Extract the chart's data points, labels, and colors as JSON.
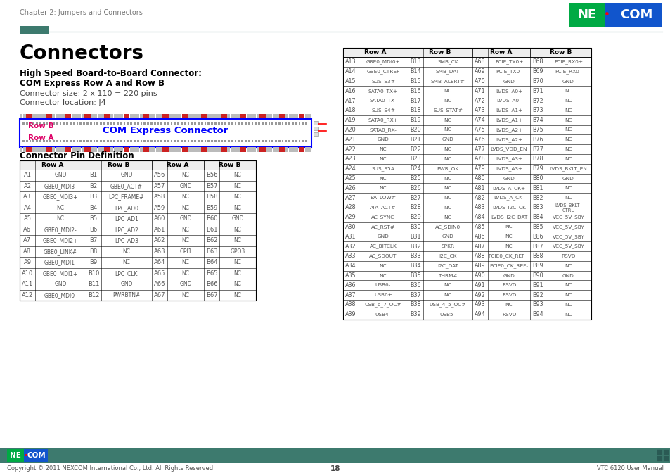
{
  "title": "Connectors",
  "subtitle1": "High Speed Board-to-Board Connector:",
  "subtitle2": "COM Express Row A and Row B",
  "connector_size": "Connector size: 2 x 110 = 220 pins",
  "connector_loc": "Connector location: J4",
  "chapter_header": "Chapter 2: Jumpers and Connectors",
  "connector_def_title": "Connector Pin Definition",
  "page_number": "18",
  "copyright": "Copyright © 2011 NEXCOM International Co., Ltd. All Rights Reserved.",
  "footer_right": "VTC 6120 User Manual",
  "header_line_color": "#3d7a6e",
  "header_block_color": "#3d7a6e",
  "footer_color": "#3d7a6e",
  "table1_data": [
    [
      "A1",
      "GND",
      "B1",
      "GND",
      "A56",
      "NC",
      "B56",
      "NC"
    ],
    [
      "A2",
      "GBE0_MDI3-",
      "B2",
      "GBE0_ACT#",
      "A57",
      "GND",
      "B57",
      "NC"
    ],
    [
      "A3",
      "GBE0_MDI3+",
      "B3",
      "LPC_FRAME#",
      "A58",
      "NC",
      "B58",
      "NC"
    ],
    [
      "A4",
      "NC",
      "B4",
      "LPC_AD0",
      "A59",
      "NC",
      "B59",
      "NC"
    ],
    [
      "A5",
      "NC",
      "B5",
      "LPC_AD1",
      "A60",
      "GND",
      "B60",
      "GND"
    ],
    [
      "A6",
      "GBE0_MDI2-",
      "B6",
      "LPC_AD2",
      "A61",
      "NC",
      "B61",
      "NC"
    ],
    [
      "A7",
      "GBE0_MDI2+",
      "B7",
      "LPC_AD3",
      "A62",
      "NC",
      "B62",
      "NC"
    ],
    [
      "A8",
      "GBE0_LINK#",
      "B8",
      "NC",
      "A63",
      "GPI1",
      "B63",
      "GPO3"
    ],
    [
      "A9",
      "GBE0_MDI1-",
      "B9",
      "NC",
      "A64",
      "NC",
      "B64",
      "NC"
    ],
    [
      "A10",
      "GBE0_MDI1+",
      "B10",
      "LPC_CLK",
      "A65",
      "NC",
      "B65",
      "NC"
    ],
    [
      "A11",
      "GND",
      "B11",
      "GND",
      "A66",
      "GND",
      "B66",
      "NC"
    ],
    [
      "A12",
      "GBE0_MDI0-",
      "B12",
      "PWRBTN#",
      "A67",
      "NC",
      "B67",
      "NC"
    ]
  ],
  "table2_data": [
    [
      "A13",
      "GBE0_MDI0+",
      "B13",
      "SMB_CK",
      "A68",
      "PCIE_TX0+",
      "B68",
      "PCIE_RX0+"
    ],
    [
      "A14",
      "GBE0_CTREF",
      "B14",
      "SMB_DAT",
      "A69",
      "PCIE_TX0-",
      "B69",
      "PCIE_RX0-"
    ],
    [
      "A15",
      "SUS_S3#",
      "B15",
      "SMB_ALERT#",
      "A70",
      "GND",
      "B70",
      "GND"
    ],
    [
      "A16",
      "SATA0_TX+",
      "B16",
      "NC",
      "A71",
      "LVDS_A0+",
      "B71",
      "NC"
    ],
    [
      "A17",
      "SATA0_TX-",
      "B17",
      "NC",
      "A72",
      "LVDS_A0-",
      "B72",
      "NC"
    ],
    [
      "A18",
      "SUS_S4#",
      "B18",
      "SUS_STAT#",
      "A73",
      "LVDS_A1+",
      "B73",
      "NC"
    ],
    [
      "A19",
      "SATA0_RX+",
      "B19",
      "NC",
      "A74",
      "LVDS_A1+",
      "B74",
      "NC"
    ],
    [
      "A20",
      "SATA0_RX-",
      "B20",
      "NC",
      "A75",
      "LVDS_A2+",
      "B75",
      "NC"
    ],
    [
      "A21",
      "GND",
      "B21",
      "GND",
      "A76",
      "LVDS_A2+",
      "B76",
      "NC"
    ],
    [
      "A22",
      "NC",
      "B22",
      "NC",
      "A77",
      "LVDS_VDD_EN",
      "B77",
      "NC"
    ],
    [
      "A23",
      "NC",
      "B23",
      "NC",
      "A78",
      "LVDS_A3+",
      "B78",
      "NC"
    ],
    [
      "A24",
      "SUS_S5#",
      "B24",
      "PWR_OK",
      "A79",
      "LVDS_A3+",
      "B79",
      "LVDS_BKLT_EN"
    ],
    [
      "A25",
      "NC",
      "B25",
      "NC",
      "A80",
      "GND",
      "B80",
      "GND"
    ],
    [
      "A26",
      "NC",
      "B26",
      "NC",
      "A81",
      "LVDS_A_CK+",
      "B81",
      "NC"
    ],
    [
      "A27",
      "BATLOW#",
      "B27",
      "NC",
      "A82",
      "LVDS_A_CK-",
      "B82",
      "NC"
    ],
    [
      "A28",
      "ATA_ACT#",
      "B28",
      "NC",
      "A83",
      "LVDS_I2C_CK",
      "B83",
      "LVDS_BKLT_\nCTRL"
    ],
    [
      "A29",
      "AC_SYNC",
      "B29",
      "NC",
      "A84",
      "LVDS_I2C_DAT",
      "B84",
      "VCC_5V_SBY"
    ],
    [
      "A30",
      "AC_RST#",
      "B30",
      "AC_SDIN0",
      "A85",
      "NC",
      "B85",
      "VCC_5V_SBY"
    ],
    [
      "A31",
      "GND",
      "B31",
      "GND",
      "A86",
      "NC",
      "B86",
      "VCC_5V_SBY"
    ],
    [
      "A32",
      "AC_BITCLK",
      "B32",
      "SPKR",
      "A87",
      "NC",
      "B87",
      "VCC_5V_SBY"
    ],
    [
      "A33",
      "AC_SDOUT",
      "B33",
      "I2C_CK",
      "A88",
      "PCIE0_CK_REF+",
      "B88",
      "RSVD"
    ],
    [
      "A34",
      "NC",
      "B34",
      "I2C_DAT",
      "A89",
      "PCIE0_CK_REF-",
      "B89",
      "NC"
    ],
    [
      "A35",
      "NC",
      "B35",
      "THRM#",
      "A90",
      "GND",
      "B90",
      "GND"
    ],
    [
      "A36",
      "USB6-",
      "B36",
      "NC",
      "A91",
      "RSVD",
      "B91",
      "NC"
    ],
    [
      "A37",
      "USB6+",
      "B37",
      "NC",
      "A92",
      "RSVD",
      "B92",
      "NC"
    ],
    [
      "A38",
      "USB_6_7_OC#",
      "B38",
      "USB_4_5_OC#",
      "A93",
      "NC",
      "B93",
      "NC"
    ],
    [
      "A39",
      "USB4-",
      "B39",
      "USB5-",
      "A94",
      "RSVD",
      "B94",
      "NC"
    ]
  ]
}
